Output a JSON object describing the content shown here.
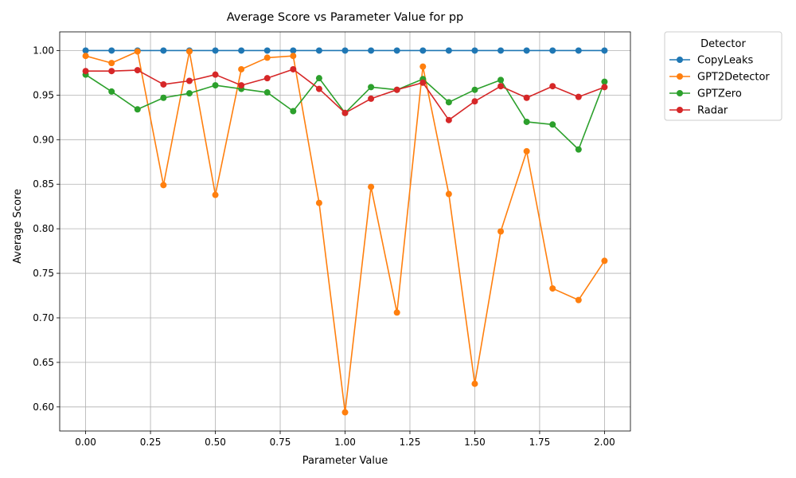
{
  "chart_data": {
    "type": "line",
    "title": "Average Score vs Parameter Value for pp",
    "xlabel": "Parameter Value",
    "ylabel": "Average Score",
    "xlim": [
      -0.1,
      2.1
    ],
    "ylim": [
      0.573,
      1.021
    ],
    "xticks": [
      0.0,
      0.25,
      0.5,
      0.75,
      1.0,
      1.25,
      1.5,
      1.75,
      2.0
    ],
    "xtick_labels": [
      "0.00",
      "0.25",
      "0.50",
      "0.75",
      "1.00",
      "1.25",
      "1.50",
      "1.75",
      "2.00"
    ],
    "yticks": [
      0.6,
      0.65,
      0.7,
      0.75,
      0.8,
      0.85,
      0.9,
      0.95,
      1.0
    ],
    "ytick_labels": [
      "0.60",
      "0.65",
      "0.70",
      "0.75",
      "0.80",
      "0.85",
      "0.90",
      "0.95",
      "1.00"
    ],
    "grid": true,
    "legend": {
      "title": "Detector",
      "placement": "outside-upper-right"
    },
    "x": [
      0.0,
      0.1,
      0.2,
      0.3,
      0.4,
      0.5,
      0.6,
      0.7,
      0.8,
      0.9,
      1.0,
      1.1,
      1.2,
      1.3,
      1.4,
      1.5,
      1.6,
      1.7,
      1.8,
      1.9,
      2.0
    ],
    "series": [
      {
        "name": "CopyLeaks",
        "color": "#1f77b4",
        "values": [
          1.0,
          1.0,
          1.0,
          1.0,
          1.0,
          1.0,
          1.0,
          1.0,
          1.0,
          1.0,
          1.0,
          1.0,
          1.0,
          1.0,
          1.0,
          1.0,
          1.0,
          1.0,
          1.0,
          1.0,
          1.0
        ]
      },
      {
        "name": "GPT2Detector",
        "color": "#ff7f0e",
        "values": [
          0.994,
          0.986,
          0.999,
          0.849,
          0.999,
          0.838,
          0.979,
          0.992,
          0.994,
          0.829,
          0.594,
          0.847,
          0.706,
          0.982,
          0.839,
          0.626,
          0.797,
          0.887,
          0.733,
          0.72,
          0.764
        ]
      },
      {
        "name": "GPTZero",
        "color": "#2ca02c",
        "values": [
          0.973,
          0.954,
          0.934,
          0.947,
          0.952,
          0.961,
          0.957,
          0.953,
          0.932,
          0.969,
          0.93,
          0.959,
          0.956,
          0.968,
          0.942,
          0.956,
          0.967,
          0.92,
          0.917,
          0.889,
          0.965
        ]
      },
      {
        "name": "Radar",
        "color": "#d62728",
        "values": [
          0.977,
          0.977,
          0.978,
          0.962,
          0.966,
          0.973,
          0.961,
          0.969,
          0.979,
          0.957,
          0.93,
          0.946,
          0.956,
          0.964,
          0.922,
          0.943,
          0.96,
          0.947,
          0.96,
          0.948,
          0.959
        ]
      }
    ]
  }
}
